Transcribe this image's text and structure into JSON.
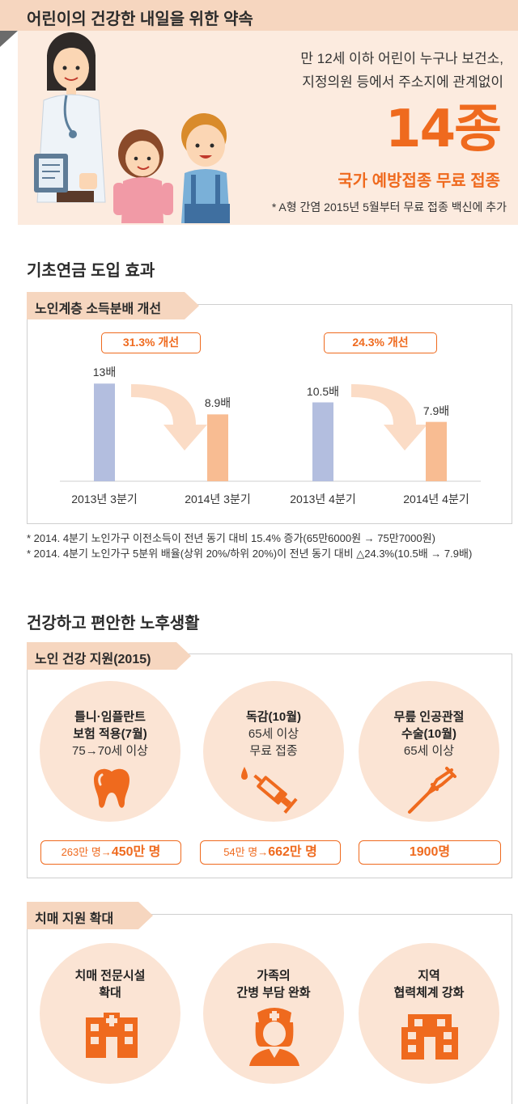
{
  "header": {
    "title": "어린이의 건강한 내일을 위한 약속",
    "desc_line1": "만 12세 이하 어린이 누구나 보건소,",
    "desc_line2": "지정의원 등에서 주소지에 관계없이",
    "big_number": "14종",
    "vaccine_title": "국가 예방접종 무료 접종",
    "note": "* A형 간염 2015년 5월부터 무료 접종 백신에 추가"
  },
  "pension": {
    "section_title": "기초연금 도입 효과",
    "tab_label": "노인계층 소득분배 개선",
    "chips": [
      "31.3% 개선",
      "24.3% 개선"
    ],
    "chart_data": {
      "type": "bar",
      "categories": [
        "2013년 3분기",
        "2014년 3분기",
        "2013년 4분기",
        "2014년 4분기"
      ],
      "values": [
        13,
        8.9,
        10.5,
        7.9
      ],
      "value_labels": [
        "13배",
        "8.9배",
        "10.5배",
        "7.9배"
      ],
      "colors": [
        "#b3bedf",
        "#f8bc92",
        "#b3bedf",
        "#f8bc92"
      ],
      "ylim": [
        0,
        14
      ],
      "title": "",
      "xlabel": "",
      "ylabel": ""
    },
    "notes": [
      "* 2014. 4분기 노인가구 이전소득이 전년 동기 대비 15.4% 증가(65만6000원 → 75만7000원)",
      "* 2014. 4분기 노인가구 5분위 배율(상위 20%/하위 20%)이 전년 동기 대비 △24.3%(10.5배 → 7.9배)"
    ]
  },
  "elder": {
    "section_title": "건강하고 편안한 노후생활",
    "tab_label": "노인 건강 지원(2015)",
    "items": [
      {
        "bold1": "틀니·임플란트",
        "bold2": "보험 적용(7월)",
        "plain": "75→70세 이상",
        "icon": "tooth-icon",
        "pill_small": "263만 명→",
        "pill_big": "450만 명"
      },
      {
        "bold1": "독감(10월)",
        "bold2": "",
        "plain": "65세 이상",
        "plain2": "무료 접종",
        "icon": "syringe-icon",
        "pill_small": "54만 명→",
        "pill_big": "662만 명"
      },
      {
        "bold1": "무릎 인공관절",
        "bold2": "수술(10월)",
        "plain": "65세 이상",
        "icon": "crutch-icon",
        "pill_total": "1900명"
      }
    ]
  },
  "dementia": {
    "tab_label": "치매 지원 확대",
    "items": [
      {
        "line1": "치매 전문시설",
        "line2": "확대",
        "icon": "hospital-icon"
      },
      {
        "line1": "가족의",
        "line2": "간병 부담 완화",
        "icon": "nurse-icon"
      },
      {
        "line1": "지역",
        "line2": "협력체계 강화",
        "icon": "building-icon"
      }
    ]
  },
  "colors": {
    "accent": "#ef6a1e",
    "tab_bg": "#f6d6bf",
    "panel_bg": "#fcebdf",
    "circle_bg": "#fbe4d4"
  }
}
